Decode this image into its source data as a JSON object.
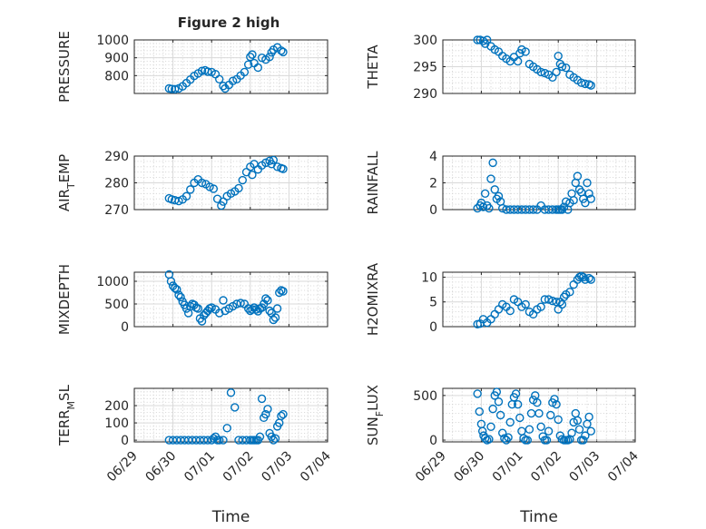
{
  "figure": {
    "title": "Figure 2 high",
    "x_tick_labels": [
      "06/29",
      "06/30",
      "07/01",
      "07/02",
      "07/03",
      "07/04"
    ],
    "xlabel": "Time",
    "marker_color": "#0072BD"
  },
  "chart_data": [
    {
      "type": "scatter",
      "panel": "PRESSURE",
      "ylabel_main": "PRESSURE",
      "ylabel_sub": "",
      "ylabel_tail": "",
      "ylim": [
        700,
        1000
      ],
      "yticks": [
        800,
        900,
        1000
      ],
      "grid": true,
      "x_days": [
        0.9,
        0.97,
        1.05,
        1.15,
        1.25,
        1.35,
        1.45,
        1.55,
        1.65,
        1.75,
        1.83,
        1.9,
        2.0,
        2.1,
        2.2,
        2.3,
        2.35,
        2.45,
        2.55,
        2.65,
        2.75,
        2.85,
        2.95,
        3.0,
        3.05,
        3.1,
        3.2,
        3.3,
        3.4,
        3.5,
        3.55,
        3.6,
        3.7,
        3.8,
        3.85
      ],
      "y": [
        728,
        725,
        724,
        728,
        740,
        758,
        778,
        798,
        812,
        826,
        830,
        822,
        820,
        808,
        780,
        742,
        728,
        748,
        770,
        780,
        800,
        820,
        862,
        905,
        918,
        870,
        845,
        900,
        890,
        905,
        930,
        945,
        958,
        940,
        932
      ]
    },
    {
      "type": "scatter",
      "panel": "THETA",
      "ylabel_main": "THETA",
      "ylabel_sub": "",
      "ylabel_tail": "",
      "ylim": [
        290,
        300
      ],
      "yticks": [
        290,
        295,
        300
      ],
      "grid": true,
      "x_days": [
        0.9,
        0.97,
        1.05,
        1.1,
        1.15,
        1.25,
        1.35,
        1.45,
        1.55,
        1.65,
        1.75,
        1.85,
        1.95,
        2.0,
        2.05,
        2.15,
        2.25,
        2.35,
        2.45,
        2.55,
        2.65,
        2.75,
        2.85,
        2.95,
        3.0,
        3.05,
        3.1,
        3.2,
        3.3,
        3.4,
        3.5,
        3.6,
        3.7,
        3.8,
        3.85
      ],
      "y": [
        300,
        300,
        299.8,
        299.3,
        300,
        298.8,
        298.2,
        297.8,
        297,
        296.5,
        296,
        296.8,
        296,
        297.5,
        298.2,
        297.8,
        295.5,
        295,
        294.5,
        294,
        293.8,
        293.5,
        293,
        294,
        297,
        295.5,
        295,
        294.8,
        293.5,
        293,
        292.5,
        292,
        291.8,
        291.7,
        291.5
      ]
    },
    {
      "type": "scatter",
      "panel": "AIR_TEMP",
      "ylabel_main": "AIR",
      "ylabel_sub": "T",
      "ylabel_tail": "EMP",
      "ylim": [
        270,
        290
      ],
      "yticks": [
        270,
        280,
        290
      ],
      "grid": true,
      "x_days": [
        0.9,
        0.97,
        1.05,
        1.15,
        1.25,
        1.35,
        1.45,
        1.55,
        1.65,
        1.75,
        1.85,
        1.95,
        2.05,
        2.15,
        2.25,
        2.3,
        2.4,
        2.5,
        2.6,
        2.7,
        2.8,
        2.9,
        3.0,
        3.05,
        3.1,
        3.2,
        3.3,
        3.4,
        3.5,
        3.55,
        3.6,
        3.7,
        3.8,
        3.85
      ],
      "y": [
        274.2,
        273.8,
        273.5,
        273.2,
        273.8,
        275,
        277.5,
        280,
        281.3,
        280,
        279.5,
        278.5,
        277.8,
        274,
        271.5,
        273,
        275,
        276,
        276.8,
        278,
        281,
        284,
        286,
        283,
        287,
        285,
        286.5,
        287.5,
        288.2,
        287,
        288.5,
        286,
        285.5,
        285.2
      ]
    },
    {
      "type": "scatter",
      "panel": "RAINFALL",
      "ylabel_main": "RAINFALL",
      "ylabel_sub": "",
      "ylabel_tail": "",
      "ylim": [
        0,
        4
      ],
      "yticks": [
        0,
        2,
        4
      ],
      "grid": true,
      "x_days": [
        0.9,
        0.97,
        1.0,
        1.05,
        1.1,
        1.15,
        1.2,
        1.25,
        1.3,
        1.35,
        1.4,
        1.45,
        1.5,
        1.55,
        1.65,
        1.75,
        1.85,
        1.95,
        2.05,
        2.15,
        2.25,
        2.35,
        2.45,
        2.55,
        2.65,
        2.75,
        2.85,
        2.95,
        3.0,
        3.05,
        3.1,
        3.15,
        3.2,
        3.25,
        3.3,
        3.35,
        3.4,
        3.45,
        3.5,
        3.55,
        3.6,
        3.65,
        3.7,
        3.75,
        3.8,
        3.85
      ],
      "y": [
        0.1,
        0.3,
        0.5,
        0.2,
        1.2,
        0.3,
        0.1,
        2.3,
        3.5,
        1.5,
        0.8,
        1.0,
        0.6,
        0.1,
        0,
        0,
        0,
        0,
        0,
        0,
        0,
        0,
        0,
        0.3,
        0,
        0,
        0,
        0,
        0,
        0,
        0,
        0.2,
        0.6,
        0,
        0.5,
        1.2,
        0.7,
        2.0,
        2.5,
        1.5,
        1.3,
        0.8,
        0.5,
        2.0,
        1.2,
        0.8
      ]
    },
    {
      "type": "scatter",
      "panel": "MIXDEPTH",
      "ylabel_main": "MIXDEPTH",
      "ylabel_sub": "",
      "ylabel_tail": "",
      "ylim": [
        0,
        1200
      ],
      "yticks": [
        0,
        500,
        1000
      ],
      "grid": true,
      "x_days": [
        0.9,
        0.95,
        1.0,
        1.05,
        1.1,
        1.15,
        1.2,
        1.25,
        1.3,
        1.35,
        1.4,
        1.45,
        1.5,
        1.55,
        1.6,
        1.65,
        1.7,
        1.75,
        1.8,
        1.85,
        1.9,
        1.95,
        2.0,
        2.1,
        2.2,
        2.3,
        2.35,
        2.45,
        2.55,
        2.65,
        2.75,
        2.85,
        2.95,
        3.0,
        3.05,
        3.1,
        3.15,
        3.2,
        3.25,
        3.3,
        3.35,
        3.4,
        3.45,
        3.5,
        3.55,
        3.6,
        3.65,
        3.7,
        3.75,
        3.8,
        3.85
      ],
      "y": [
        1150,
        1000,
        900,
        850,
        820,
        700,
        650,
        550,
        480,
        400,
        300,
        450,
        500,
        480,
        420,
        400,
        180,
        120,
        250,
        300,
        350,
        400,
        420,
        380,
        300,
        580,
        350,
        400,
        450,
        500,
        520,
        500,
        400,
        350,
        380,
        420,
        380,
        340,
        400,
        420,
        500,
        620,
        580,
        350,
        300,
        150,
        200,
        400,
        750,
        800,
        780
      ]
    },
    {
      "type": "scatter",
      "panel": "H2OMIXRA",
      "ylabel_main": "H2OMIXRA",
      "ylabel_sub": "",
      "ylabel_tail": "",
      "ylim": [
        0,
        11
      ],
      "yticks": [
        0,
        5,
        10
      ],
      "grid": true,
      "x_days": [
        0.9,
        0.97,
        1.05,
        1.15,
        1.25,
        1.35,
        1.45,
        1.55,
        1.65,
        1.75,
        1.85,
        1.95,
        2.05,
        2.15,
        2.25,
        2.35,
        2.45,
        2.55,
        2.65,
        2.75,
        2.85,
        2.95,
        3.0,
        3.05,
        3.1,
        3.15,
        3.2,
        3.3,
        3.4,
        3.5,
        3.55,
        3.6,
        3.65,
        3.7,
        3.8,
        3.85
      ],
      "y": [
        0.5,
        0.6,
        1.5,
        0.8,
        1.5,
        2.5,
        3.5,
        4.5,
        4,
        3.2,
        5.5,
        5,
        4,
        4.5,
        3,
        2.5,
        3.5,
        4,
        5.5,
        5.5,
        5.2,
        5,
        3.5,
        5,
        4.5,
        6,
        6.5,
        7,
        8.5,
        9.5,
        10,
        10.2,
        10,
        9.5,
        9.8,
        9.5
      ]
    },
    {
      "type": "scatter",
      "panel": "TERR_MSL",
      "ylabel_main": "TERR",
      "ylabel_sub": "M",
      "ylabel_tail": "SL",
      "ylim": [
        -10,
        300
      ],
      "yticks": [
        0,
        100,
        200
      ],
      "grid": true,
      "x_days": [
        0.9,
        1.0,
        1.1,
        1.2,
        1.3,
        1.4,
        1.5,
        1.6,
        1.7,
        1.8,
        1.9,
        2.0,
        2.05,
        2.1,
        2.15,
        2.2,
        2.3,
        2.4,
        2.5,
        2.6,
        2.7,
        2.8,
        2.9,
        3.0,
        3.05,
        3.1,
        3.15,
        3.2,
        3.25,
        3.3,
        3.35,
        3.4,
        3.45,
        3.5,
        3.55,
        3.6,
        3.65,
        3.7,
        3.75,
        3.8,
        3.85
      ],
      "y": [
        0,
        0,
        0,
        0,
        0,
        0,
        0,
        0,
        0,
        0,
        0,
        0,
        10,
        20,
        0,
        0,
        0,
        70,
        275,
        190,
        0,
        0,
        0,
        0,
        0,
        0,
        0,
        0,
        20,
        240,
        130,
        150,
        180,
        40,
        20,
        0,
        10,
        80,
        100,
        140,
        150
      ]
    },
    {
      "type": "scatter",
      "panel": "SUN_FLUX",
      "ylabel_main": "SUN",
      "ylabel_sub": "F",
      "ylabel_tail": "LUX",
      "ylim": [
        -20,
        580
      ],
      "yticks": [
        0,
        500
      ],
      "grid": true,
      "x_days": [
        0.9,
        0.95,
        1.0,
        1.03,
        1.06,
        1.1,
        1.15,
        1.2,
        1.25,
        1.3,
        1.35,
        1.4,
        1.45,
        1.5,
        1.55,
        1.6,
        1.65,
        1.7,
        1.75,
        1.8,
        1.85,
        1.9,
        1.95,
        2.0,
        2.05,
        2.1,
        2.15,
        2.2,
        2.25,
        2.3,
        2.35,
        2.4,
        2.45,
        2.5,
        2.55,
        2.6,
        2.65,
        2.7,
        2.75,
        2.8,
        2.85,
        2.9,
        2.95,
        3.0,
        3.05,
        3.1,
        3.15,
        3.2,
        3.25,
        3.3,
        3.35,
        3.4,
        3.45,
        3.5,
        3.55,
        3.6,
        3.65,
        3.7,
        3.75,
        3.8,
        3.85
      ],
      "y": [
        520,
        320,
        180,
        100,
        50,
        20,
        0,
        10,
        150,
        350,
        500,
        540,
        430,
        280,
        80,
        20,
        0,
        30,
        200,
        400,
        480,
        520,
        400,
        250,
        100,
        20,
        0,
        0,
        120,
        300,
        450,
        500,
        420,
        300,
        150,
        40,
        0,
        0,
        100,
        280,
        420,
        460,
        400,
        230,
        50,
        10,
        0,
        0,
        0,
        10,
        80,
        200,
        300,
        220,
        120,
        0,
        0,
        50,
        180,
        260,
        100
      ]
    }
  ]
}
